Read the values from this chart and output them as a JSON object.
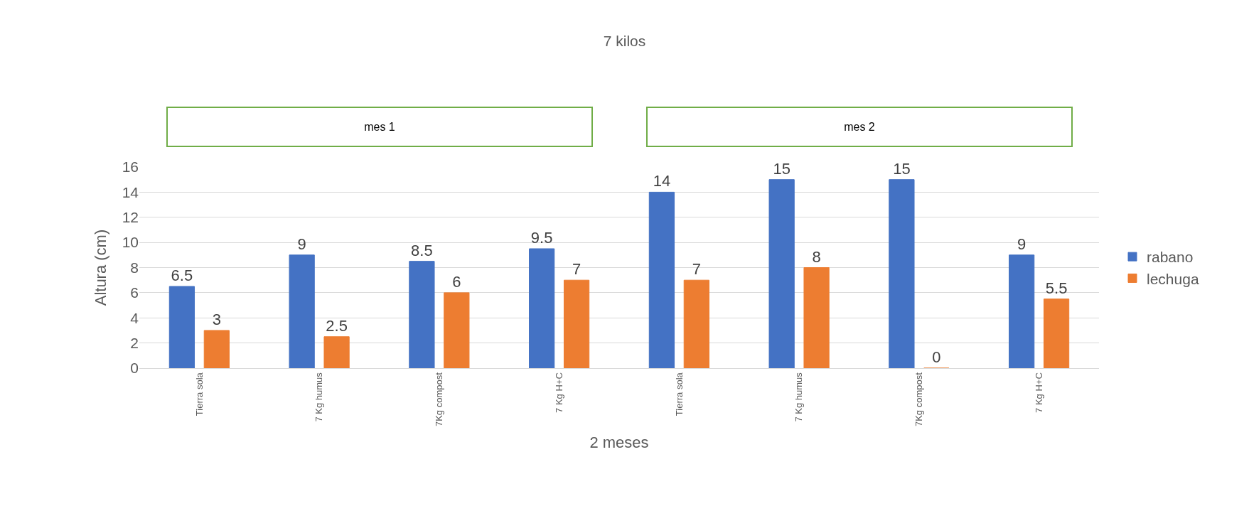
{
  "chart_data": {
    "type": "bar",
    "title": "7 kilos",
    "xlabel": "2 meses",
    "ylabel": "Altura (cm)",
    "categories": [
      "Tierra sola",
      "7 Kg humus",
      "7Kg compost",
      "7 Kg H+C",
      "Tierra sola",
      "7 Kg humus",
      "7Kg compost",
      "7 Kg H+C"
    ],
    "series": [
      {
        "name": "rabano",
        "color": "#4472c4",
        "values": [
          6.5,
          9,
          8.5,
          9.5,
          14,
          15,
          15,
          9
        ]
      },
      {
        "name": "lechuga",
        "color": "#ed7d31",
        "values": [
          3,
          2.5,
          6,
          7,
          7,
          8,
          0,
          5.5
        ]
      }
    ],
    "annotations": [
      "mes 1",
      "mes 2"
    ],
    "ylim": [
      0,
      16
    ],
    "yticks": [
      0,
      2,
      4,
      6,
      8,
      10,
      12,
      14,
      16
    ],
    "grid": "y",
    "legend": "right",
    "data_labels": true
  }
}
